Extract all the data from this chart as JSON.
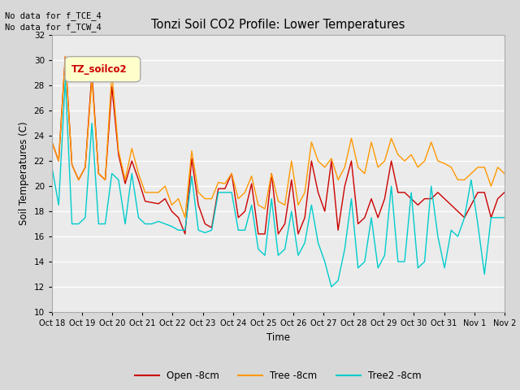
{
  "title": "Tonzi Soil CO2 Profile: Lower Temperatures",
  "xlabel": "Time",
  "ylabel": "Soil Temperatures (C)",
  "corner_text": "No data for f_TCE_4\nNo data for f_TCW_4",
  "legend_label": "TZ_soilco2",
  "ylim": [
    10,
    32
  ],
  "yticks": [
    10,
    12,
    14,
    16,
    18,
    20,
    22,
    24,
    26,
    28,
    30,
    32
  ],
  "xtick_labels": [
    "Oct 18",
    "Oct 19",
    "Oct 20",
    "Oct 21",
    "Oct 22",
    "Oct 23",
    "Oct 24",
    "Oct 25",
    "Oct 26",
    "Oct 27",
    "Oct 28",
    "Oct 29",
    "Oct 30",
    "Oct 31",
    "Nov 1",
    "Nov 2"
  ],
  "series": {
    "open": {
      "color": "#cc0000",
      "label": "Open -8cm",
      "values": [
        23.5,
        22.0,
        30.3,
        21.7,
        20.5,
        21.5,
        29.0,
        21.0,
        20.5,
        27.9,
        22.5,
        20.2,
        22.0,
        20.5,
        18.8,
        18.7,
        18.6,
        19.0,
        18.0,
        17.5,
        16.2,
        22.2,
        18.5,
        17.0,
        16.7,
        19.8,
        19.8,
        21.0,
        17.5,
        18.0,
        20.2,
        16.2,
        16.2,
        21.0,
        16.2,
        17.0,
        20.5,
        16.2,
        17.5,
        22.0,
        19.5,
        18.0,
        22.0,
        16.5,
        20.0,
        22.0,
        17.0,
        17.5,
        19.0,
        17.5,
        19.0,
        22.0,
        19.5,
        19.5,
        19.0,
        18.5,
        19.0,
        19.0,
        19.5,
        19.0,
        18.5,
        18.0,
        17.5,
        18.5,
        19.5,
        19.5,
        17.5,
        19.0,
        19.5
      ]
    },
    "tree": {
      "color": "#ff9900",
      "label": "Tree -8cm",
      "values": [
        23.5,
        22.0,
        30.3,
        21.7,
        20.5,
        21.5,
        28.5,
        21.0,
        20.5,
        29.0,
        22.8,
        20.5,
        23.0,
        21.0,
        19.5,
        19.5,
        19.5,
        20.0,
        18.5,
        19.0,
        17.5,
        22.8,
        19.5,
        19.0,
        19.0,
        20.3,
        20.2,
        21.0,
        19.0,
        19.5,
        20.8,
        18.5,
        18.2,
        21.0,
        18.8,
        18.5,
        22.0,
        18.5,
        19.5,
        23.5,
        22.0,
        21.5,
        22.2,
        20.5,
        21.5,
        23.8,
        21.5,
        21.0,
        23.5,
        21.5,
        22.0,
        23.8,
        22.5,
        22.0,
        22.5,
        21.5,
        22.0,
        23.5,
        22.0,
        21.8,
        21.5,
        20.5,
        20.5,
        21.0,
        21.5,
        21.5,
        20.0,
        21.5,
        21.0
      ]
    },
    "tree2": {
      "color": "#00cccc",
      "label": "Tree2 -8cm",
      "values": [
        21.5,
        18.5,
        28.5,
        17.0,
        17.0,
        17.5,
        25.0,
        17.0,
        17.0,
        21.0,
        20.5,
        17.0,
        21.0,
        17.5,
        17.0,
        17.0,
        17.2,
        17.0,
        16.8,
        16.5,
        16.5,
        20.8,
        16.5,
        16.3,
        16.5,
        19.5,
        19.5,
        19.5,
        16.5,
        16.5,
        18.5,
        15.0,
        14.5,
        19.0,
        14.5,
        15.0,
        18.0,
        14.5,
        15.5,
        18.5,
        15.5,
        14.0,
        12.0,
        12.5,
        15.0,
        19.0,
        13.5,
        14.0,
        17.5,
        13.5,
        14.5,
        20.0,
        14.0,
        14.0,
        19.5,
        13.5,
        14.0,
        20.0,
        16.0,
        13.5,
        16.5,
        16.0,
        17.5,
        20.5,
        17.0,
        13.0,
        17.5,
        17.5,
        17.5
      ]
    }
  },
  "bg_color": "#d8d8d8",
  "plot_bg": "#ebebeb",
  "grid_color": "white",
  "legend_box_facecolor": "#ffffcc",
  "legend_box_edgecolor": "#aaaaaa"
}
